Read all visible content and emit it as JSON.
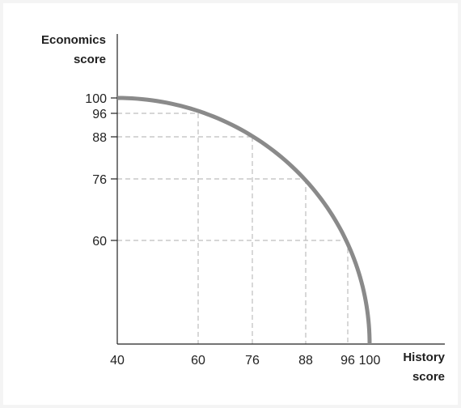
{
  "chart_data": {
    "type": "line",
    "title": "",
    "xlabel_lines": [
      "History",
      "score"
    ],
    "ylabel_lines": [
      "Economics",
      "score"
    ],
    "x_ticks": [
      "40",
      "60",
      "76",
      "88",
      "96",
      "100"
    ],
    "y_ticks": [
      "100",
      "96",
      "88",
      "76",
      "60"
    ],
    "xlim": [
      40,
      100
    ],
    "ylim": [
      40,
      100
    ],
    "curve_color": "#8a8a8a",
    "guide_color": "#bdbdbd",
    "series": [
      {
        "x": [
          40,
          60,
          76,
          88,
          96,
          100
        ],
        "y": [
          100,
          96,
          88,
          76,
          60,
          40
        ]
      }
    ]
  }
}
